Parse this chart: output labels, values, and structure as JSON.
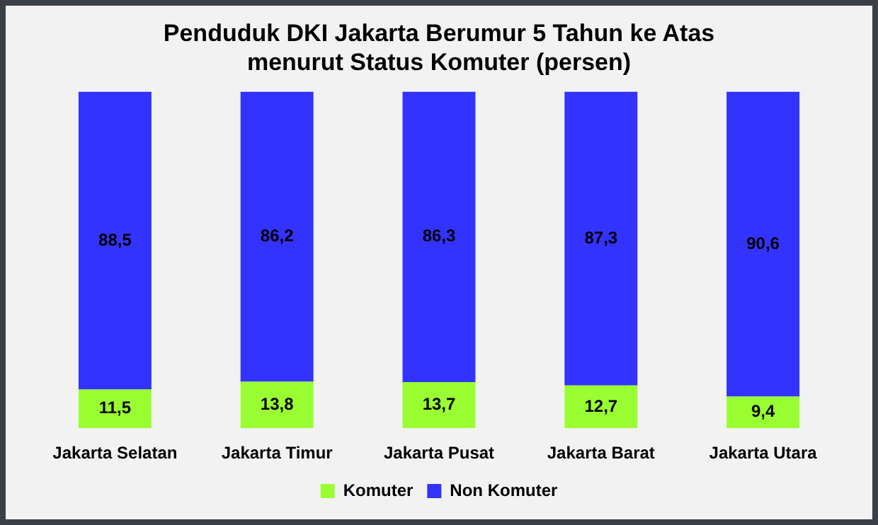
{
  "chart_data": {
    "type": "bar",
    "title": "Penduduk DKI Jakarta Berumur 5 Tahun ke Atas menurut Status Komuter (persen)",
    "categories": [
      "Jakarta Selatan",
      "Jakarta Timur",
      "Jakarta Pusat",
      "Jakarta Barat",
      "Jakarta Utara"
    ],
    "stacked": true,
    "series": [
      {
        "name": "Komuter",
        "color": "#99ff33",
        "values": [
          11.5,
          13.8,
          13.7,
          12.7,
          9.4
        ],
        "value_labels": [
          "11,5",
          "13,8",
          "13,7",
          "12,7",
          "9,4"
        ]
      },
      {
        "name": "Non Komuter",
        "color": "#3333ff",
        "values": [
          88.5,
          86.2,
          86.3,
          87.3,
          90.6
        ],
        "value_labels": [
          "88,5",
          "86,2",
          "86,3",
          "87,3",
          "90,6"
        ]
      }
    ],
    "legend": "bottom",
    "grid": false
  }
}
